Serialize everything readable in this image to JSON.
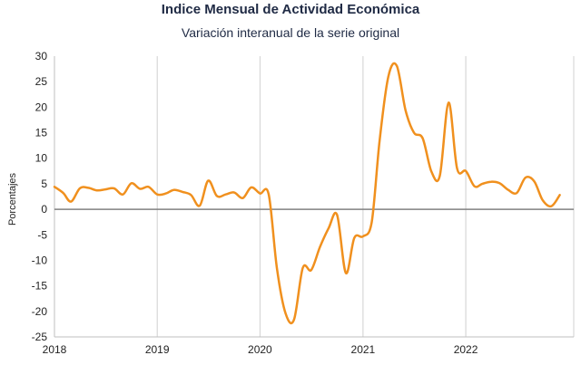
{
  "chart_data": {
    "type": "line",
    "title": "Indice Mensual de  Actividad Económica",
    "subtitle": "Variación interanual de la serie original",
    "ylabel": "Porcentajes",
    "xlabel": "",
    "ylim": [
      -25,
      30
    ],
    "y_ticks": [
      30,
      25,
      20,
      15,
      10,
      5,
      0,
      -5,
      -10,
      -15,
      -20,
      -25
    ],
    "x_ticks": [
      "2018",
      "2019",
      "2020",
      "2021",
      "2022"
    ],
    "grid": "vertical",
    "colors": {
      "line": "#f0901e",
      "zero": "#808080",
      "grid": "#d0d0d0",
      "axis": "#bfbfbf"
    },
    "series": [
      {
        "x": [
          "2018-01",
          "2018-02",
          "2018-03",
          "2018-04",
          "2018-05",
          "2018-06",
          "2018-07",
          "2018-08",
          "2018-09",
          "2018-10",
          "2018-11",
          "2018-12",
          "2019-01",
          "2019-02",
          "2019-03",
          "2019-04",
          "2019-05",
          "2019-06",
          "2019-07",
          "2019-08",
          "2019-09",
          "2019-10",
          "2019-11",
          "2019-12",
          "2020-01",
          "2020-02",
          "2020-03",
          "2020-04",
          "2020-05",
          "2020-06",
          "2020-07",
          "2020-08",
          "2020-09",
          "2020-10",
          "2020-11",
          "2020-12",
          "2021-01",
          "2021-02",
          "2021-03",
          "2021-04",
          "2021-05",
          "2021-06",
          "2021-07",
          "2021-08",
          "2021-09",
          "2021-10",
          "2021-11",
          "2021-12",
          "2022-01",
          "2022-02",
          "2022-03",
          "2022-04",
          "2022-05",
          "2022-06",
          "2022-07",
          "2022-08",
          "2022-09",
          "2022-10",
          "2022-11",
          "2022-12"
        ],
        "values": [
          4.4,
          3.2,
          1.5,
          4.1,
          4.2,
          3.7,
          3.9,
          4.1,
          2.9,
          5.1,
          4.0,
          4.4,
          2.9,
          3.1,
          3.8,
          3.4,
          2.8,
          0.7,
          5.6,
          2.6,
          2.9,
          3.3,
          2.2,
          4.3,
          3.1,
          2.9,
          -11.5,
          -20.4,
          -21.6,
          -11.5,
          -11.9,
          -7.4,
          -3.7,
          -1.1,
          -12.5,
          -5.6,
          -5.3,
          -2.5,
          13.5,
          26.0,
          28.1,
          19.4,
          15.0,
          13.9,
          7.4,
          6.6,
          20.9,
          8.0,
          7.5,
          4.5,
          5.0,
          5.4,
          5.1,
          3.8,
          3.2,
          6.2,
          5.5,
          1.8,
          0.6,
          2.8
        ]
      }
    ]
  }
}
